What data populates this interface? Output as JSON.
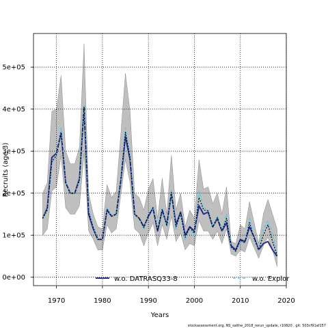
{
  "chart_data": {
    "type": "line",
    "title": "",
    "xlabel": "Years",
    "ylabel": "Recruits (age 3)",
    "xlim": [
      1965,
      2020
    ],
    "ylim": [
      -20000,
      580000
    ],
    "x_ticks": [
      1970,
      1980,
      1990,
      2000,
      2010,
      2020
    ],
    "x_tick_labels": [
      "1970",
      "1980",
      "1990",
      "2000",
      "2010",
      "2020"
    ],
    "y_ticks": [
      0,
      100000,
      200000,
      300000,
      400000,
      500000
    ],
    "y_tick_labels": [
      "0e+00",
      "1e+05",
      "2e+05",
      "3e+05",
      "4e+05",
      "5e+05"
    ],
    "grid": true,
    "legend_position": "bottom",
    "x": [
      1967,
      1968,
      1969,
      1970,
      1971,
      1972,
      1973,
      1974,
      1975,
      1976,
      1977,
      1978,
      1979,
      1980,
      1981,
      1982,
      1983,
      1984,
      1985,
      1986,
      1987,
      1988,
      1989,
      1990,
      1991,
      1992,
      1993,
      1994,
      1995,
      1996,
      1997,
      1998,
      1999,
      2000,
      2001,
      2002,
      2003,
      2004,
      2005,
      2006,
      2007,
      2008,
      2009,
      2010,
      2011,
      2012,
      2013,
      2014,
      2015,
      2016,
      2017,
      2018
    ],
    "band": {
      "color": "#bfbfbf",
      "upper": [
        200000,
        225000,
        395000,
        400000,
        480000,
        300000,
        270000,
        270000,
        310000,
        555000,
        200000,
        150000,
        120000,
        115000,
        220000,
        190000,
        205000,
        340000,
        485000,
        395000,
        200000,
        190000,
        160000,
        210000,
        235000,
        140000,
        235000,
        150000,
        290000,
        160000,
        200000,
        120000,
        160000,
        140000,
        280000,
        210000,
        215000,
        175000,
        200000,
        150000,
        215000,
        85000,
        80000,
        125000,
        115000,
        180000,
        130000,
        80000,
        150000,
        185000,
        150000,
        115000
      ],
      "lower": [
        100000,
        115000,
        205000,
        215000,
        290000,
        165000,
        150000,
        150000,
        170000,
        295000,
        110000,
        90000,
        65000,
        65000,
        125000,
        105000,
        115000,
        195000,
        280000,
        225000,
        115000,
        105000,
        75000,
        105000,
        130000,
        75000,
        125000,
        90000,
        145000,
        85000,
        105000,
        65000,
        80000,
        75000,
        135000,
        110000,
        110000,
        90000,
        110000,
        80000,
        115000,
        55000,
        50000,
        65000,
        60000,
        95000,
        70000,
        45000,
        75000,
        95000,
        65000,
        25000
      ]
    },
    "series": [
      {
        "name": "w.o. DATRASQ33-8",
        "color": "#2b2b8f",
        "style": "solid",
        "values": [
          140000,
          165000,
          285000,
          295000,
          345000,
          225000,
          200000,
          200000,
          235000,
          405000,
          150000,
          115000,
          90000,
          90000,
          160000,
          145000,
          150000,
          230000,
          335000,
          280000,
          150000,
          140000,
          120000,
          145000,
          165000,
          110000,
          160000,
          125000,
          200000,
          125000,
          155000,
          100000,
          120000,
          110000,
          170000,
          150000,
          155000,
          120000,
          140000,
          110000,
          130000,
          75000,
          65000,
          90000,
          85000,
          120000,
          95000,
          65000,
          80000,
          85000,
          65000,
          50000
        ]
      },
      {
        "name": "w.o. Explor",
        "color": "#5bc8f0",
        "style": "dashed",
        "values": [
          140000,
          160000,
          270000,
          290000,
          355000,
          225000,
          200000,
          200000,
          230000,
          410000,
          160000,
          120000,
          90000,
          90000,
          165000,
          145000,
          150000,
          230000,
          355000,
          290000,
          150000,
          140000,
          115000,
          150000,
          165000,
          115000,
          165000,
          120000,
          205000,
          115000,
          150000,
          90000,
          115000,
          100000,
          205000,
          165000,
          160000,
          120000,
          145000,
          110000,
          150000,
          70000,
          60000,
          85000,
          80000,
          140000,
          90000,
          65000,
          115000,
          135000,
          100000,
          55000
        ]
      },
      {
        "name": "",
        "color": "#000000",
        "style": "dotted",
        "values": [
          140000,
          160000,
          275000,
          290000,
          345000,
          225000,
          200000,
          200000,
          230000,
          405000,
          155000,
          118000,
          90000,
          90000,
          162000,
          145000,
          150000,
          230000,
          345000,
          285000,
          150000,
          140000,
          118000,
          148000,
          165000,
          112000,
          162000,
          122000,
          202000,
          120000,
          152000,
          95000,
          118000,
          105000,
          190000,
          160000,
          158000,
          120000,
          142000,
          110000,
          140000,
          72000,
          62000,
          88000,
          82000,
          130000,
          92000,
          65000,
          100000,
          125000,
          85000,
          52000
        ]
      }
    ]
  },
  "footer": "stockassessment.org, NS_saithe_2018_rerun_update, r10820 , git: 503cf91af157"
}
